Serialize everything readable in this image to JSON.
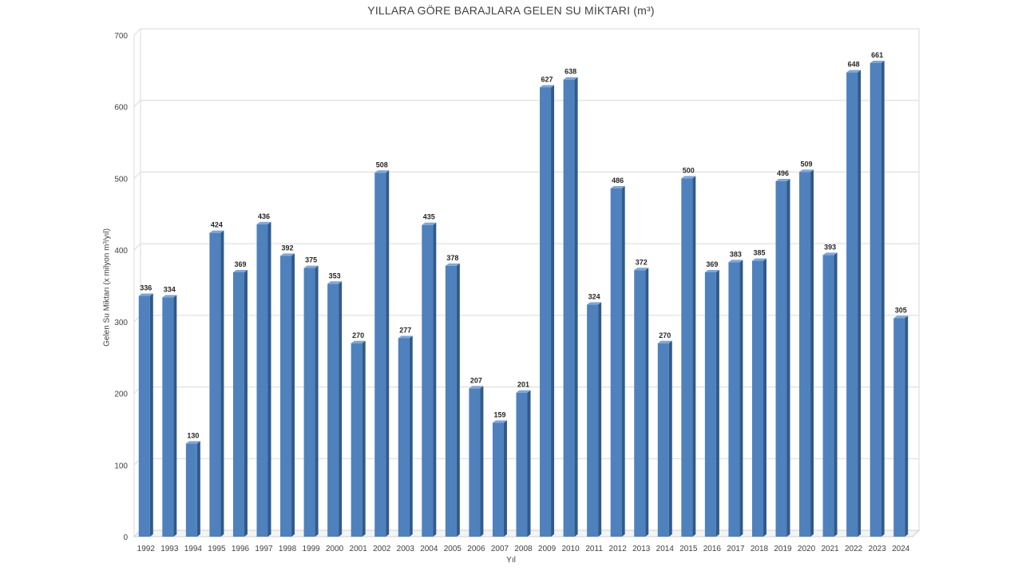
{
  "chart_data": {
    "type": "bar",
    "title": "YILLARA GÖRE BARAJLARA GELEN SU MİKTARI (m³)",
    "xlabel": "Yıl",
    "ylabel": "Gelen Su Miktarı (x milyon m³/yıl)",
    "ylim": [
      0,
      700
    ],
    "yticks": [
      0,
      100,
      200,
      300,
      400,
      500,
      600,
      700
    ],
    "grid": true,
    "legend": "none",
    "bar_color": "#4f81bd",
    "categories": [
      "1992",
      "1993",
      "1994",
      "1995",
      "1996",
      "1997",
      "1998",
      "1999",
      "2000",
      "2001",
      "2002",
      "2003",
      "2004",
      "2005",
      "2006",
      "2007",
      "2008",
      "2009",
      "2010",
      "2011",
      "2012",
      "2013",
      "2014",
      "2015",
      "2016",
      "2017",
      "2018",
      "2019",
      "2020",
      "2021",
      "2022",
      "2023",
      "2024"
    ],
    "values": [
      336,
      334,
      130,
      424,
      369,
      436,
      392,
      375,
      353,
      270,
      508,
      277,
      435,
      378,
      207,
      159,
      201,
      627,
      638,
      324,
      486,
      372,
      270,
      500,
      369,
      383,
      385,
      496,
      509,
      393,
      648,
      661,
      305
    ]
  }
}
